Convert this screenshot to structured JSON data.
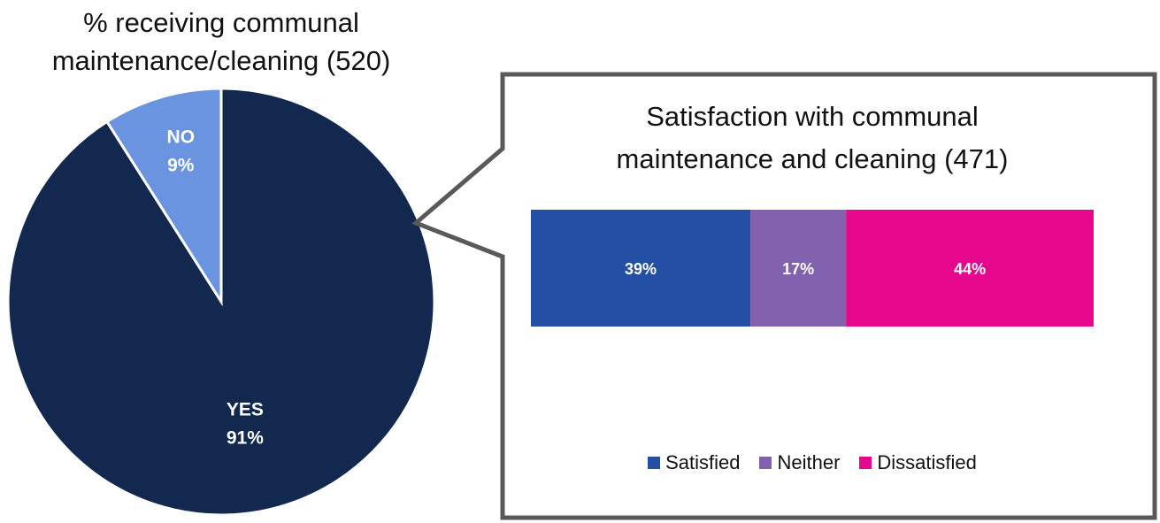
{
  "chart_data": [
    {
      "type": "pie",
      "title_lines": [
        "% receiving communal",
        "maintenance/cleaning (520)"
      ],
      "slices": [
        {
          "label": "YES",
          "value": 91,
          "display": "91%",
          "color": "#12284f"
        },
        {
          "label": "NO",
          "value": 9,
          "display": "9%",
          "color": "#6a93e0"
        }
      ]
    },
    {
      "type": "bar",
      "orientation": "horizontal-stacked-100",
      "title_lines": [
        "Satisfaction with communal",
        "maintenance and cleaning (471)"
      ],
      "segments": [
        {
          "name": "Satisfied",
          "value": 39,
          "display": "39%",
          "color": "#2350a4"
        },
        {
          "name": "Neither",
          "value": 17,
          "display": "17%",
          "color": "#8262ae"
        },
        {
          "name": "Dissatisfied",
          "value": 44,
          "display": "44%",
          "color": "#e5088c"
        }
      ],
      "legend_position": "bottom"
    }
  ]
}
